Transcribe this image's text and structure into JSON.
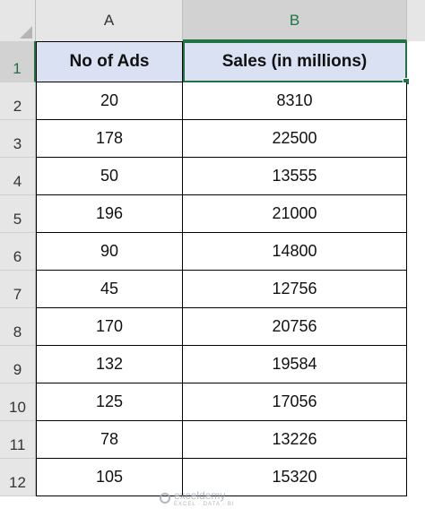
{
  "columns": {
    "a": "A",
    "b": "B"
  },
  "rows": [
    "1",
    "2",
    "3",
    "4",
    "5",
    "6",
    "7",
    "8",
    "9",
    "10",
    "11",
    "12"
  ],
  "table": {
    "headers": [
      "No of Ads",
      "Sales (in millions)"
    ],
    "data": [
      [
        "20",
        "8310"
      ],
      [
        "178",
        "22500"
      ],
      [
        "50",
        "13555"
      ],
      [
        "196",
        "21000"
      ],
      [
        "90",
        "14800"
      ],
      [
        "45",
        "12756"
      ],
      [
        "170",
        "20756"
      ],
      [
        "132",
        "19584"
      ],
      [
        "125",
        "17056"
      ],
      [
        "78",
        "13226"
      ],
      [
        "105",
        "15320"
      ]
    ]
  },
  "watermark": {
    "brand": "exceldemy",
    "tagline": "EXCEL · DATA · BI"
  },
  "colors": {
    "selection": "#217346",
    "header_fill": "#d9e1f2"
  }
}
